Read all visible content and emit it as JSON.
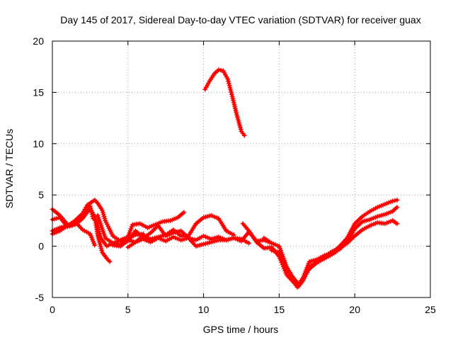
{
  "chart_data": {
    "type": "scatter",
    "title": "Day 145 of 2017, Sidereal Day-to-day VTEC variation (SDTVAR) for receiver guax",
    "xlabel": "GPS time / hours",
    "ylabel": "SDTVAR / TECUs",
    "xlim": [
      0,
      25
    ],
    "ylim": [
      -5,
      20
    ],
    "xticks": [
      0,
      5,
      10,
      15,
      20,
      25
    ],
    "yticks": [
      -5,
      0,
      5,
      10,
      15,
      20
    ],
    "grid": true,
    "marker": "+",
    "color": "#ff0000",
    "series": [
      {
        "name": "s1",
        "x": [
          0.0,
          0.5,
          1.0,
          1.5,
          2.0,
          2.5,
          2.8,
          3.0,
          3.3,
          3.6,
          3.8
        ],
        "y": [
          3.6,
          3.0,
          2.1,
          2.1,
          2.7,
          3.7,
          2.9,
          1.0,
          -0.6,
          -1.2,
          -1.5
        ]
      },
      {
        "name": "s2",
        "x": [
          0.0,
          0.5,
          1.0,
          1.5,
          2.0,
          2.3,
          2.6,
          2.8,
          3.0,
          3.3,
          3.5,
          4.0,
          4.5,
          5.0,
          5.5,
          6.0
        ],
        "y": [
          1.2,
          1.5,
          2.0,
          2.5,
          3.2,
          4.0,
          4.3,
          4.5,
          4.2,
          3.5,
          2.5,
          1.0,
          0.5,
          0.8,
          1.1,
          1.2
        ]
      },
      {
        "name": "s3",
        "x": [
          0.0,
          0.5,
          1.0,
          1.3,
          1.8,
          2.2,
          2.5,
          2.7,
          2.9,
          3.2,
          3.6,
          4.0,
          4.5,
          5.0,
          5.3,
          5.8,
          6.3,
          6.8,
          7.3,
          7.8,
          8.3,
          8.7
        ],
        "y": [
          2.6,
          2.8,
          1.9,
          2.0,
          2.6,
          3.3,
          3.9,
          2.7,
          2.5,
          0.8,
          0.0,
          0.3,
          0.6,
          0.9,
          2.1,
          2.2,
          1.8,
          2.1,
          2.4,
          2.5,
          2.8,
          3.3
        ]
      },
      {
        "name": "s4",
        "x": [
          0.0,
          0.5,
          1.0,
          1.5,
          2.0,
          2.5,
          2.8
        ],
        "y": [
          1.5,
          1.8,
          2.0,
          2.4,
          1.6,
          1.2,
          0.1
        ]
      },
      {
        "name": "s5",
        "x": [
          3.0,
          3.5,
          4.0,
          4.5,
          5.0,
          5.5,
          6.0,
          6.5,
          7.0,
          7.5,
          8.0,
          8.5,
          9.0,
          9.5,
          10.0,
          10.5,
          11.0,
          11.5,
          12.0,
          12.5,
          13.0,
          13.5,
          14.0,
          14.5
        ],
        "y": [
          3.0,
          0.8,
          0.3,
          0.2,
          0.5,
          1.5,
          0.8,
          1.3,
          2.0,
          1.0,
          1.3,
          1.5,
          0.8,
          0.6,
          1.0,
          0.7,
          0.9,
          0.6,
          0.8,
          0.5,
          1.4,
          0.5,
          0.6,
          0.3
        ]
      },
      {
        "name": "s6",
        "x": [
          5.0,
          5.5,
          6.0,
          6.5,
          7.0,
          7.5,
          8.0,
          8.5,
          9.0,
          9.5,
          10.0,
          10.5,
          11.0,
          11.5,
          12.0
        ],
        "y": [
          -0.1,
          0.4,
          1.0,
          0.7,
          0.9,
          1.1,
          1.6,
          1.0,
          1.0,
          2.2,
          2.8,
          3.0,
          2.7,
          1.5,
          1.1
        ]
      },
      {
        "name": "s7",
        "x": [
          4.0,
          4.5,
          5.0,
          5.5,
          6.0,
          6.5,
          7.0,
          7.5,
          8.0,
          8.5,
          9.0,
          9.5,
          10.0,
          10.5,
          11.0,
          11.5,
          12.0,
          12.5,
          13.0
        ],
        "y": [
          0.1,
          0.0,
          0.6,
          0.4,
          0.7,
          0.4,
          0.8,
          0.5,
          0.9,
          0.6,
          0.8,
          0.0,
          0.2,
          0.4,
          0.6,
          0.6,
          0.8,
          0.7,
          0.3
        ]
      },
      {
        "name": "s8",
        "x": [
          10.1,
          10.4,
          10.7,
          11.0,
          11.3,
          11.6,
          11.9,
          12.2,
          12.5,
          12.7
        ],
        "y": [
          15.3,
          16.1,
          16.8,
          17.2,
          17.1,
          16.3,
          14.6,
          12.8,
          11.2,
          10.8
        ]
      },
      {
        "name": "s9",
        "x": [
          12.6,
          13.0,
          13.5,
          14.0,
          14.5,
          15.0,
          15.5,
          16.0,
          16.2,
          16.5,
          17.0,
          17.5,
          18.0,
          18.5,
          19.0,
          19.5,
          20.0,
          20.5,
          21.0,
          21.5,
          22.0,
          22.5,
          22.8
        ],
        "y": [
          2.2,
          1.5,
          0.4,
          -0.2,
          -0.1,
          -1.0,
          -2.8,
          -3.6,
          -4.0,
          -3.4,
          -2.2,
          -1.6,
          -1.2,
          -0.8,
          -0.3,
          0.4,
          1.7,
          2.4,
          2.6,
          2.9,
          3.1,
          3.4,
          3.8
        ]
      },
      {
        "name": "s10",
        "x": [
          14.0,
          14.5,
          15.0,
          15.5,
          16.0,
          16.3,
          16.6,
          17.0,
          17.5,
          18.0,
          18.5,
          19.0,
          19.5,
          20.0,
          20.5,
          21.0,
          21.5,
          22.0,
          22.5,
          22.8
        ],
        "y": [
          0.8,
          0.3,
          0.0,
          -2.0,
          -3.3,
          -3.9,
          -3.3,
          -2.0,
          -1.5,
          -1.0,
          -0.5,
          -0.2,
          0.3,
          1.0,
          1.6,
          2.0,
          2.3,
          2.2,
          2.5,
          2.2
        ]
      },
      {
        "name": "s11",
        "x": [
          14.5,
          15.0,
          15.5,
          16.0,
          16.3,
          16.6,
          17.0,
          17.5,
          18.0,
          18.5,
          19.0,
          19.5,
          20.0,
          20.5,
          21.0,
          21.5,
          22.0,
          22.5,
          22.8
        ],
        "y": [
          -0.4,
          -0.6,
          -2.3,
          -3.2,
          -3.7,
          -3.0,
          -1.5,
          -1.3,
          -0.9,
          -0.7,
          0.0,
          0.8,
          2.2,
          2.9,
          3.4,
          3.8,
          4.1,
          4.4,
          4.5
        ]
      }
    ]
  }
}
